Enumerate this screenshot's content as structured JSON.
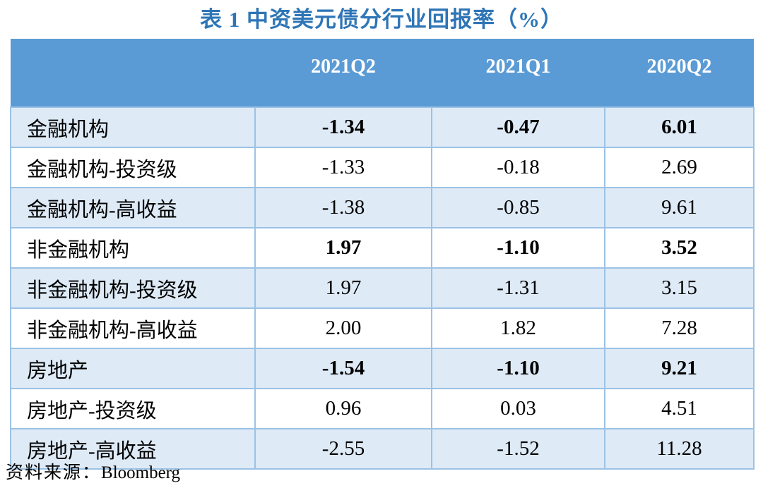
{
  "title": "表 1 中资美元债分行业回报率（%）",
  "source": {
    "label": "资料来源：",
    "value": "Bloomberg"
  },
  "table": {
    "columns": [
      "",
      "2021Q2",
      "2021Q1",
      "2020Q2"
    ],
    "rows": [
      {
        "label": "金融机构",
        "values": [
          "-1.34",
          "-0.47",
          "6.01"
        ],
        "bold": true
      },
      {
        "label": "金融机构-投资级",
        "values": [
          "-1.33",
          "-0.18",
          "2.69"
        ],
        "bold": false
      },
      {
        "label": "金融机构-高收益",
        "values": [
          "-1.38",
          "-0.85",
          "9.61"
        ],
        "bold": false
      },
      {
        "label": "非金融机构",
        "values": [
          "1.97",
          "-1.10",
          "3.52"
        ],
        "bold": true
      },
      {
        "label": "非金融机构-投资级",
        "values": [
          "1.97",
          "-1.31",
          "3.15"
        ],
        "bold": false
      },
      {
        "label": "非金融机构-高收益",
        "values": [
          "2.00",
          "1.82",
          "7.28"
        ],
        "bold": false
      },
      {
        "label": "房地产",
        "values": [
          "-1.54",
          "-1.10",
          "9.21"
        ],
        "bold": true
      },
      {
        "label": "房地产-投资级",
        "values": [
          "0.96",
          "0.03",
          "4.51"
        ],
        "bold": false
      },
      {
        "label": "房地产-高收益",
        "values": [
          "-2.55",
          "-1.52",
          "11.28"
        ],
        "bold": false
      }
    ]
  },
  "colors": {
    "header_bg": "#5B9BD5",
    "band_bg": "#DEEAF6",
    "border": "#9CC2E5",
    "title": "#2E75B6",
    "header_text": "#FFFFFF",
    "body_text": "#000000"
  }
}
